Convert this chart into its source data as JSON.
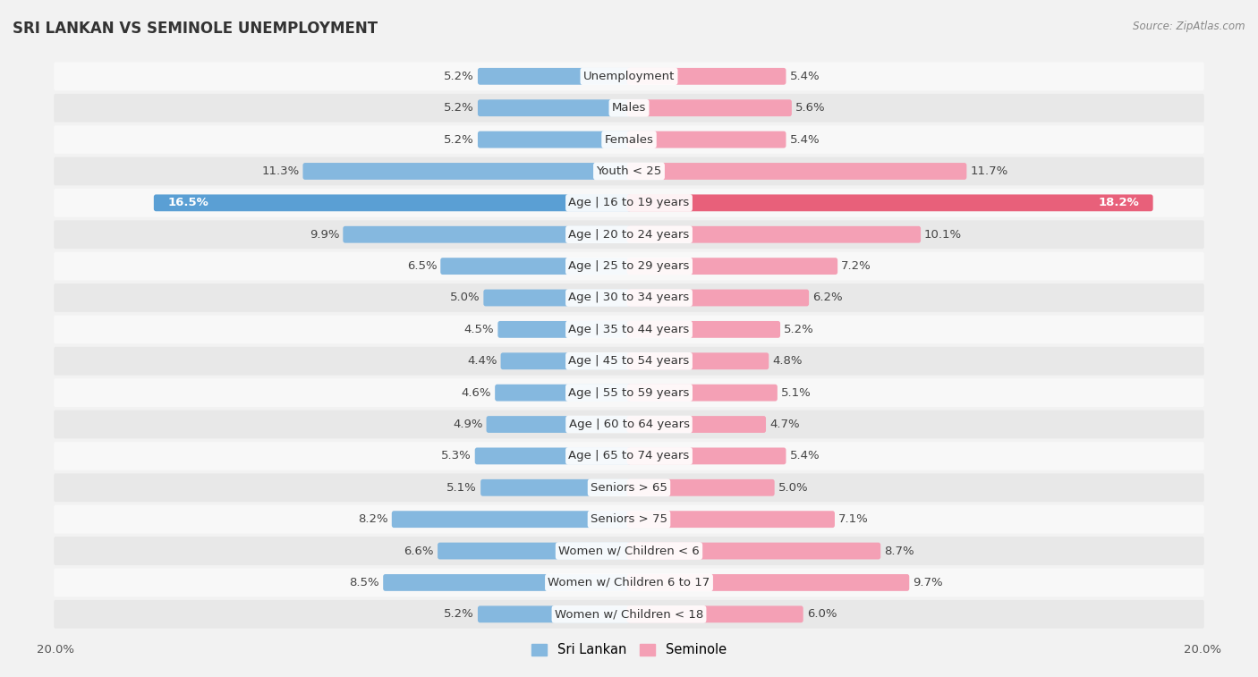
{
  "title": "SRI LANKAN VS SEMINOLE UNEMPLOYMENT",
  "source": "Source: ZipAtlas.com",
  "categories": [
    "Unemployment",
    "Males",
    "Females",
    "Youth < 25",
    "Age | 16 to 19 years",
    "Age | 20 to 24 years",
    "Age | 25 to 29 years",
    "Age | 30 to 34 years",
    "Age | 35 to 44 years",
    "Age | 45 to 54 years",
    "Age | 55 to 59 years",
    "Age | 60 to 64 years",
    "Age | 65 to 74 years",
    "Seniors > 65",
    "Seniors > 75",
    "Women w/ Children < 6",
    "Women w/ Children 6 to 17",
    "Women w/ Children < 18"
  ],
  "sri_lankan": [
    5.2,
    5.2,
    5.2,
    11.3,
    16.5,
    9.9,
    6.5,
    5.0,
    4.5,
    4.4,
    4.6,
    4.9,
    5.3,
    5.1,
    8.2,
    6.6,
    8.5,
    5.2
  ],
  "seminole": [
    5.4,
    5.6,
    5.4,
    11.7,
    18.2,
    10.1,
    7.2,
    6.2,
    5.2,
    4.8,
    5.1,
    4.7,
    5.4,
    5.0,
    7.1,
    8.7,
    9.7,
    6.0
  ],
  "sri_lankan_color": "#85b8df",
  "seminole_color": "#f4a0b5",
  "sri_lankan_highlight_color": "#5a9fd4",
  "seminole_highlight_color": "#e8607a",
  "background_color": "#f2f2f2",
  "row_color_odd": "#e8e8e8",
  "row_color_even": "#f8f8f8",
  "axis_max": 20.0,
  "label_fontsize": 9.5,
  "title_fontsize": 12,
  "legend_label_sri": "Sri Lankan",
  "legend_label_sem": "Seminole",
  "highlight_row_index": 4
}
